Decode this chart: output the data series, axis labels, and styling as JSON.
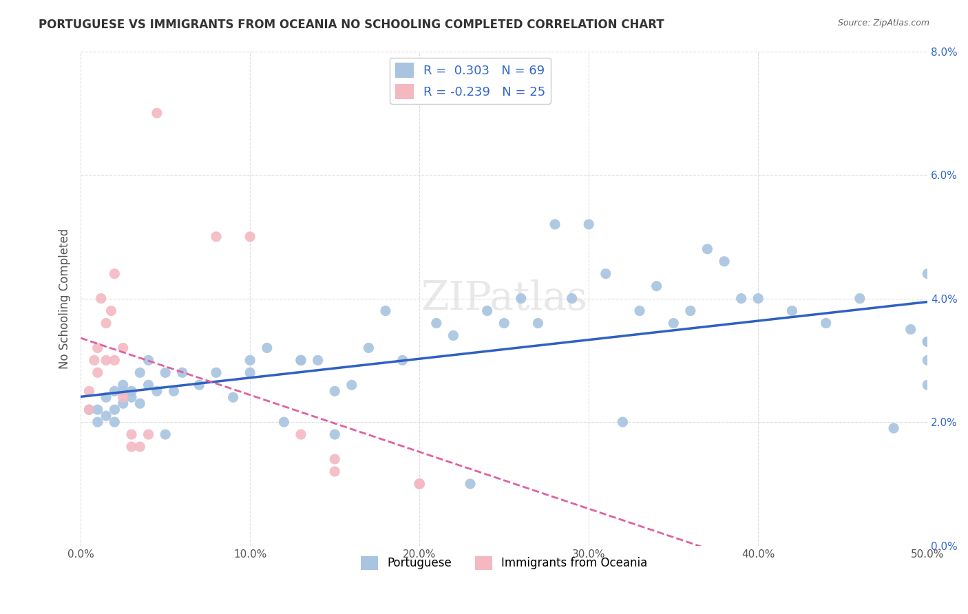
{
  "title": "PORTUGUESE VS IMMIGRANTS FROM OCEANIA NO SCHOOLING COMPLETED CORRELATION CHART",
  "source": "Source: ZipAtlas.com",
  "xlabel_ticks": [
    "0.0%",
    "10.0%",
    "20.0%",
    "30.0%",
    "40.0%",
    "50.0%"
  ],
  "xlabel_vals": [
    0.0,
    0.1,
    0.2,
    0.3,
    0.4,
    0.5
  ],
  "ylabel_ticks": [
    "0.0%",
    "2.0%",
    "4.0%",
    "6.0%",
    "8.0%"
  ],
  "ylabel_vals": [
    0.0,
    0.02,
    0.04,
    0.06,
    0.08
  ],
  "ylabel_label": "No Schooling Completed",
  "legend_labels": [
    "Portuguese",
    "Immigrants from Oceania"
  ],
  "blue_color": "#a8c4e0",
  "pink_color": "#f4b8c1",
  "blue_line_color": "#3060c0",
  "pink_line_color": "#e060a0",
  "R_blue": 0.303,
  "N_blue": 69,
  "R_pink": -0.239,
  "N_pink": 25,
  "blue_x": [
    0.005,
    0.01,
    0.01,
    0.015,
    0.015,
    0.02,
    0.02,
    0.02,
    0.025,
    0.025,
    0.025,
    0.03,
    0.03,
    0.035,
    0.035,
    0.04,
    0.04,
    0.045,
    0.05,
    0.05,
    0.055,
    0.06,
    0.07,
    0.08,
    0.09,
    0.1,
    0.1,
    0.11,
    0.12,
    0.13,
    0.13,
    0.14,
    0.15,
    0.15,
    0.16,
    0.17,
    0.18,
    0.19,
    0.2,
    0.21,
    0.22,
    0.23,
    0.24,
    0.25,
    0.26,
    0.27,
    0.28,
    0.29,
    0.3,
    0.31,
    0.32,
    0.33,
    0.34,
    0.35,
    0.36,
    0.37,
    0.38,
    0.39,
    0.4,
    0.42,
    0.44,
    0.46,
    0.48,
    0.49,
    0.5,
    0.5,
    0.5,
    0.5,
    0.5
  ],
  "blue_y": [
    0.022,
    0.022,
    0.02,
    0.024,
    0.021,
    0.025,
    0.022,
    0.02,
    0.026,
    0.023,
    0.025,
    0.025,
    0.024,
    0.028,
    0.023,
    0.03,
    0.026,
    0.025,
    0.028,
    0.018,
    0.025,
    0.028,
    0.026,
    0.028,
    0.024,
    0.03,
    0.028,
    0.032,
    0.02,
    0.03,
    0.03,
    0.03,
    0.025,
    0.018,
    0.026,
    0.032,
    0.038,
    0.03,
    0.01,
    0.036,
    0.034,
    0.01,
    0.038,
    0.036,
    0.04,
    0.036,
    0.052,
    0.04,
    0.052,
    0.044,
    0.02,
    0.038,
    0.042,
    0.036,
    0.038,
    0.048,
    0.046,
    0.04,
    0.04,
    0.038,
    0.036,
    0.04,
    0.019,
    0.035,
    0.033,
    0.03,
    0.033,
    0.044,
    0.026
  ],
  "pink_x": [
    0.005,
    0.005,
    0.008,
    0.01,
    0.01,
    0.012,
    0.015,
    0.015,
    0.018,
    0.02,
    0.02,
    0.025,
    0.025,
    0.03,
    0.03,
    0.035,
    0.04,
    0.045,
    0.08,
    0.1,
    0.13,
    0.15,
    0.15,
    0.2,
    0.2
  ],
  "pink_y": [
    0.022,
    0.025,
    0.03,
    0.028,
    0.032,
    0.04,
    0.036,
    0.03,
    0.038,
    0.044,
    0.03,
    0.032,
    0.024,
    0.018,
    0.016,
    0.016,
    0.018,
    0.07,
    0.05,
    0.05,
    0.018,
    0.014,
    0.012,
    0.01,
    0.01
  ],
  "watermark": "ZIPatlas",
  "xlim": [
    0.0,
    0.5
  ],
  "ylim": [
    0.0,
    0.08
  ],
  "background_color": "#ffffff",
  "grid_color": "#dddddd"
}
